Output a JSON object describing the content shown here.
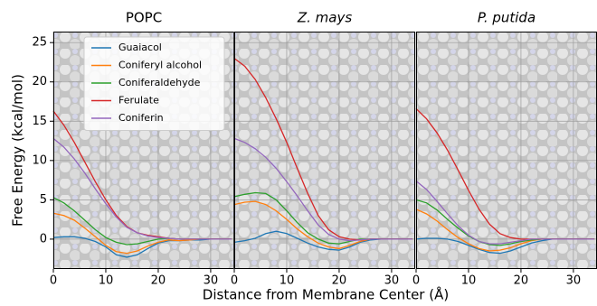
{
  "chart_data": [
    {
      "type": "line",
      "title": "POPC",
      "ylabel": "Free Energy (kcal/mol)",
      "legend": "upper center",
      "grid": true,
      "x": [
        0,
        2,
        4,
        6,
        8,
        10,
        12,
        14,
        16,
        18,
        20,
        22,
        24,
        26,
        28,
        30,
        32,
        34
      ],
      "xlim": [
        0,
        34.5
      ],
      "ylim": [
        -3.8,
        26.4
      ],
      "xticks": [
        0,
        10,
        20,
        30
      ],
      "yticks": [
        0,
        5,
        10,
        15,
        20,
        25
      ],
      "series": [
        {
          "name": "Guaiacol",
          "color": "#1f77b4",
          "values": [
            0.2,
            0.3,
            0.3,
            0.1,
            -0.3,
            -1.0,
            -2.0,
            -2.3,
            -2.0,
            -1.2,
            -0.5,
            -0.2,
            -0.2,
            -0.1,
            -0.1,
            0,
            0,
            0
          ]
        },
        {
          "name": "Coniferyl alcohol",
          "color": "#ff7f0e",
          "values": [
            3.3,
            3.0,
            2.4,
            1.4,
            0.3,
            -0.8,
            -1.6,
            -1.8,
            -1.5,
            -0.9,
            -0.4,
            -0.1,
            -0.2,
            -0.1,
            0,
            0,
            0,
            0
          ]
        },
        {
          "name": "Coniferaldehyde",
          "color": "#2ca02c",
          "values": [
            5.3,
            4.6,
            3.6,
            2.4,
            1.2,
            0.2,
            -0.4,
            -0.7,
            -0.6,
            -0.3,
            0,
            0.1,
            0,
            0,
            0,
            0,
            0,
            0
          ]
        },
        {
          "name": "Ferulate",
          "color": "#d62728",
          "values": [
            16.3,
            14.5,
            12.3,
            9.8,
            7.3,
            5.0,
            3.0,
            1.6,
            0.8,
            0.5,
            0.3,
            0.1,
            0,
            0,
            0,
            0,
            0,
            0
          ]
        },
        {
          "name": "Coniferin",
          "color": "#9467bd",
          "values": [
            12.8,
            11.7,
            10.2,
            8.4,
            6.4,
            4.5,
            2.8,
            1.5,
            0.8,
            0.4,
            0.2,
            0.1,
            0,
            0,
            0,
            0,
            0,
            0
          ]
        }
      ]
    },
    {
      "type": "line",
      "title": "Z. mays",
      "xlabel": "Distance from Membrane Center (Å)",
      "grid": true,
      "x": [
        0,
        2,
        4,
        6,
        8,
        10,
        12,
        14,
        16,
        18,
        20,
        22,
        24,
        26,
        28,
        30,
        32,
        34
      ],
      "xlim": [
        0,
        34.5
      ],
      "ylim": [
        -3.8,
        26.4
      ],
      "xticks": [
        0,
        10,
        20,
        30
      ],
      "yticks": [
        0,
        5,
        10,
        15,
        20,
        25
      ],
      "series": [
        {
          "color": "#1f77b4",
          "values": [
            -0.4,
            -0.2,
            0.1,
            0.7,
            1.0,
            0.7,
            0.1,
            -0.5,
            -1.0,
            -1.3,
            -1.4,
            -1.0,
            -0.4,
            -0.1,
            0,
            0,
            0,
            0
          ]
        },
        {
          "color": "#ff7f0e",
          "values": [
            4.4,
            4.7,
            4.8,
            4.4,
            3.6,
            2.5,
            1.3,
            0.3,
            -0.5,
            -1.0,
            -1.2,
            -0.8,
            -0.3,
            0,
            0,
            0,
            0,
            0
          ]
        },
        {
          "color": "#2ca02c",
          "values": [
            5.4,
            5.7,
            5.9,
            5.8,
            5.0,
            3.6,
            2.1,
            0.8,
            0,
            -0.5,
            -0.6,
            -0.3,
            0,
            0,
            0,
            0,
            0,
            0
          ]
        },
        {
          "color": "#d62728",
          "values": [
            23.0,
            22.0,
            20.3,
            18.0,
            15.3,
            12.3,
            9.0,
            5.8,
            3.0,
            1.2,
            0.3,
            0,
            -0.1,
            0,
            0,
            0,
            0,
            0
          ]
        },
        {
          "color": "#9467bd",
          "values": [
            12.8,
            12.3,
            11.5,
            10.4,
            9.0,
            7.3,
            5.5,
            3.6,
            1.8,
            0.6,
            0,
            -0.2,
            -0.1,
            0,
            0,
            0,
            0,
            0
          ]
        }
      ]
    },
    {
      "type": "line",
      "title": "P. putida",
      "grid": true,
      "x": [
        0,
        2,
        4,
        6,
        8,
        10,
        12,
        14,
        16,
        18,
        20,
        22,
        24,
        26,
        28,
        30,
        32,
        34
      ],
      "xlim": [
        0,
        34.5
      ],
      "ylim": [
        -3.8,
        26.4
      ],
      "xticks": [
        0,
        10,
        20,
        30
      ],
      "yticks": [
        0,
        5,
        10,
        15,
        20,
        25
      ],
      "series": [
        {
          "color": "#1f77b4",
          "values": [
            0,
            0.1,
            0.1,
            0,
            -0.3,
            -0.8,
            -1.3,
            -1.7,
            -1.8,
            -1.5,
            -1.0,
            -0.5,
            -0.2,
            0,
            0,
            0,
            0,
            0
          ]
        },
        {
          "color": "#ff7f0e",
          "values": [
            3.8,
            3.2,
            2.3,
            1.2,
            0.2,
            -0.6,
            -1.2,
            -1.5,
            -1.4,
            -1.1,
            -0.6,
            -0.2,
            0,
            0,
            0,
            0,
            0,
            0
          ]
        },
        {
          "color": "#2ca02c",
          "values": [
            5.0,
            4.6,
            3.7,
            2.5,
            1.4,
            0.4,
            -0.3,
            -0.7,
            -0.8,
            -0.6,
            -0.3,
            -0.1,
            0,
            0,
            0,
            0,
            0,
            0
          ]
        },
        {
          "color": "#d62728",
          "values": [
            16.6,
            15.3,
            13.5,
            11.3,
            8.8,
            6.2,
            3.8,
            1.9,
            0.7,
            0.2,
            0,
            0,
            0,
            0,
            0,
            0,
            0,
            0
          ]
        },
        {
          "color": "#9467bd",
          "values": [
            7.4,
            6.3,
            4.8,
            3.2,
            1.7,
            0.5,
            -0.3,
            -0.6,
            -0.6,
            -0.4,
            -0.2,
            0,
            0,
            0,
            0,
            0,
            0,
            0
          ]
        }
      ]
    }
  ]
}
